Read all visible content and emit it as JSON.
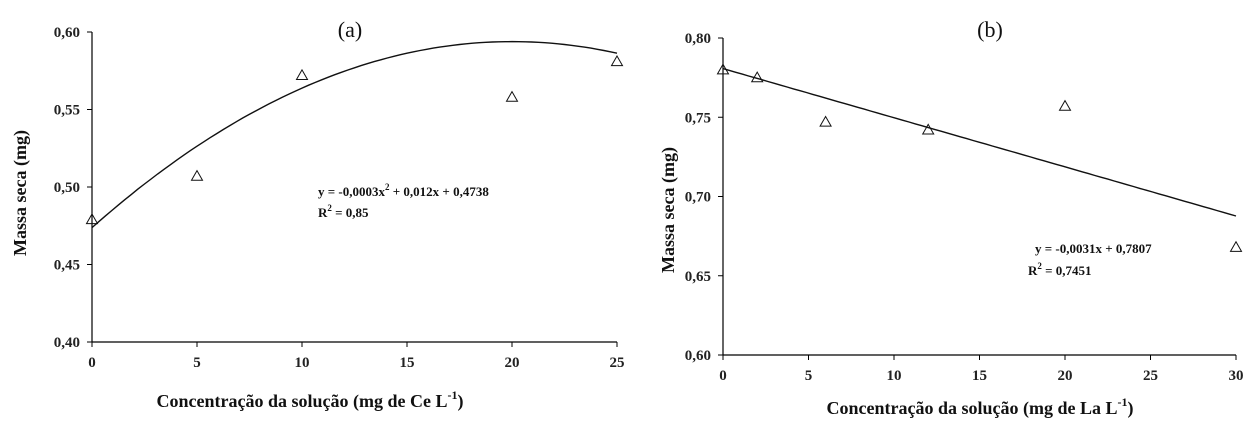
{
  "chart_data": [
    {
      "type": "scatter",
      "panel_label": "(a)",
      "xlabel_main": "Concentração da solução (mg de Ce L",
      "xlabel_sup": "-1",
      "xlabel_end": ")",
      "ylabel": "Massa seca (mg)",
      "xlim": [
        0,
        25
      ],
      "ylim": [
        0.4,
        0.6
      ],
      "x_ticks": [
        "0",
        "5",
        "10",
        "15",
        "20",
        "25"
      ],
      "y_ticks": [
        "0,40",
        "0,45",
        "0,50",
        "0,55",
        "0,60"
      ],
      "series": [
        {
          "x": [
            0,
            5,
            10,
            20,
            25
          ],
          "y": [
            0.479,
            0.507,
            0.572,
            0.558,
            0.581
          ]
        }
      ],
      "fit": {
        "type": "quadratic",
        "a": -0.0003,
        "b": 0.012,
        "c": 0.4738
      },
      "equation_main": "y = -0,0003x",
      "equation_sup": "2",
      "equation_end": " + 0,012x + 0,4738",
      "r2_main": "R",
      "r2_sup": "2",
      "r2_end": " = 0,85"
    },
    {
      "type": "scatter",
      "panel_label": "(b)",
      "xlabel_main": "Concentração da solução (mg de La L",
      "xlabel_sup": "-1",
      "xlabel_end": ")",
      "ylabel": "Massa seca (mg)",
      "xlim": [
        0,
        30
      ],
      "ylim": [
        0.6,
        0.8
      ],
      "x_ticks": [
        "0",
        "5",
        "10",
        "15",
        "20",
        "25",
        "30"
      ],
      "y_ticks": [
        "0,60",
        "0,65",
        "0,70",
        "0,75",
        "0,80"
      ],
      "series": [
        {
          "x": [
            0,
            2,
            6,
            12,
            20,
            30
          ],
          "y": [
            0.78,
            0.775,
            0.747,
            0.742,
            0.757,
            0.668
          ]
        }
      ],
      "fit": {
        "type": "linear",
        "a": -0.0031,
        "b": 0.7807
      },
      "equation_main": "y = -0,0031x + 0,7807",
      "equation_sup": "",
      "equation_end": "",
      "r2_main": "R",
      "r2_sup": "2",
      "r2_end": " = 0,7451"
    }
  ]
}
